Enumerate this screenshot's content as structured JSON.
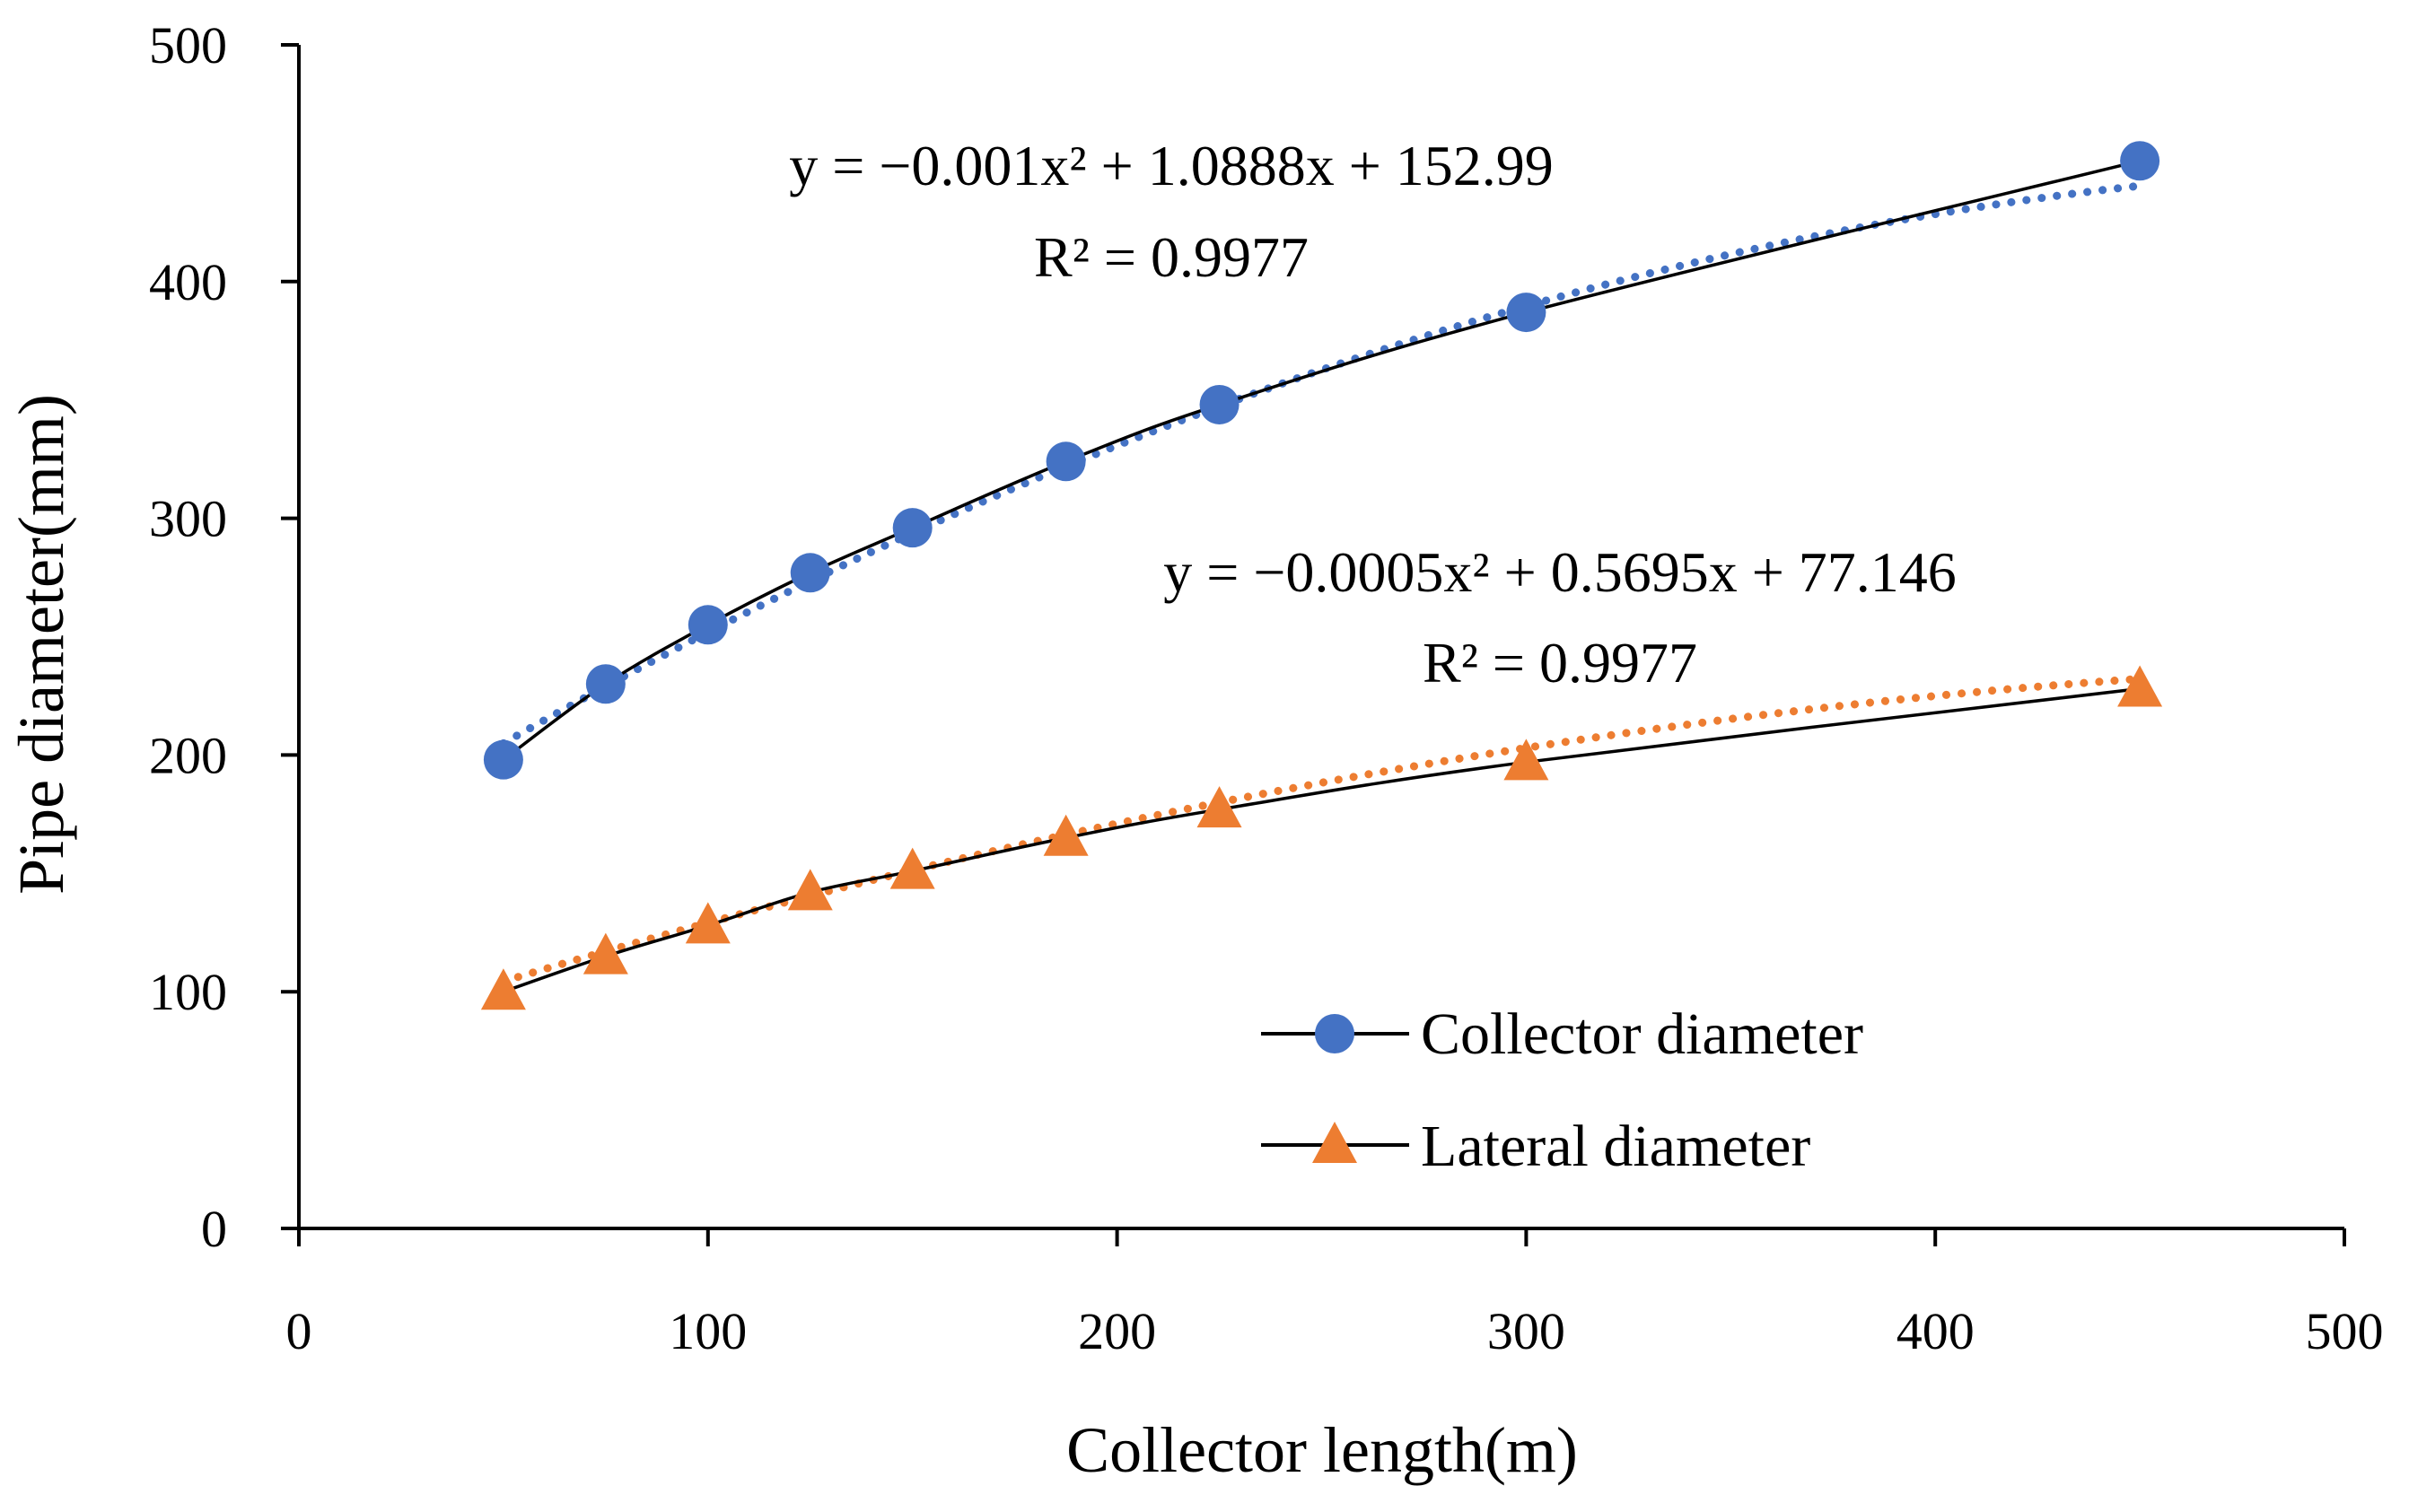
{
  "chart_data": {
    "type": "scatter",
    "title": "",
    "xlabel": "Collector length(m)",
    "ylabel": "Pipe diameter(mm)",
    "xlim": [
      0,
      500
    ],
    "ylim": [
      0,
      500
    ],
    "xticks": [
      "0",
      "100",
      "200",
      "300",
      "400",
      "500"
    ],
    "yticks": [
      "0",
      "100",
      "200",
      "300",
      "400",
      "500"
    ],
    "grid": false,
    "legend_position": "bottom-right",
    "series": [
      {
        "name": "Collector diameter",
        "marker": "circle",
        "color": "#4472C4",
        "x": [
          50,
          75,
          100,
          125,
          150,
          187.5,
          225,
          300,
          450
        ],
        "y": [
          198,
          230,
          255,
          277,
          296,
          324,
          348,
          387,
          451
        ],
        "trendline": {
          "type": "polynomial",
          "coefficients": [
            -0.001,
            1.0888,
            152.99
          ],
          "color": "#4472C4",
          "equation": "y = −0.001x² + 1.0888x + 152.99",
          "r_squared": "R² = 0.9977"
        }
      },
      {
        "name": "Lateral diameter",
        "marker": "triangle",
        "color": "#ED7D31",
        "x": [
          50,
          75,
          100,
          125,
          150,
          187.5,
          225,
          300,
          450
        ],
        "y": [
          100,
          115,
          128,
          142,
          151,
          165,
          177,
          197,
          228
        ],
        "trendline": {
          "type": "polynomial",
          "coefficients": [
            -0.0005,
            0.5695,
            77.146
          ],
          "color": "#ED7D31",
          "equation": "y = −0.0005x² + 0.5695x + 77.146",
          "r_squared": "R² = 0.9977"
        }
      }
    ]
  }
}
